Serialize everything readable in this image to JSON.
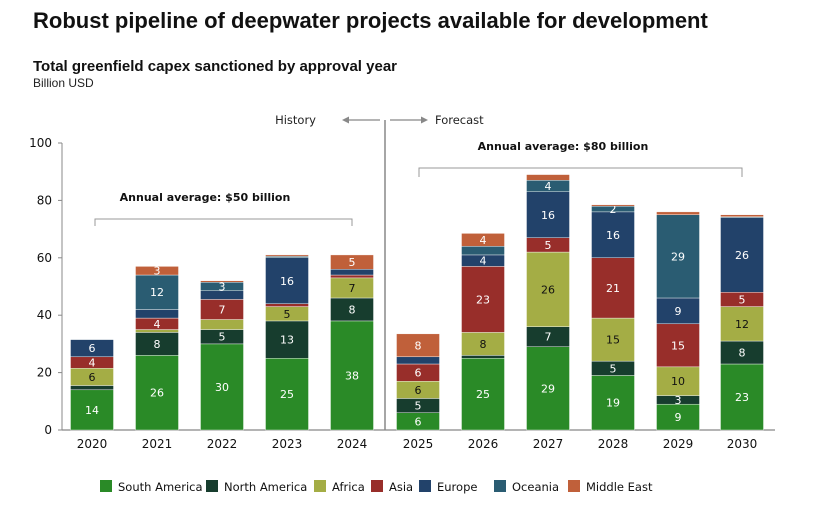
{
  "title": "Robust pipeline of deepwater projects available for development",
  "chart_data": {
    "type": "bar",
    "stacked": true,
    "title": "Total greenfield capex sanctioned by approval year",
    "ylabel": "Billion USD",
    "xlabel": "",
    "ylim": [
      0,
      100
    ],
    "yticks": [
      "0",
      "20",
      "40",
      "60",
      "80",
      "100"
    ],
    "categories": [
      "2020",
      "2021",
      "2022",
      "2023",
      "2024",
      "2025",
      "2026",
      "2027",
      "2028",
      "2029",
      "2030"
    ],
    "series": [
      {
        "name": "South America",
        "color": "#2a8a27",
        "values": [
          14,
          26,
          30,
          25,
          38,
          6,
          25,
          29,
          19,
          9,
          23
        ],
        "labels": [
          "14",
          "26",
          "30",
          "25",
          "38",
          "6",
          "25",
          "29",
          "19",
          "9",
          "23"
        ]
      },
      {
        "name": "North America",
        "color": "#173d2e",
        "values": [
          1.5,
          8,
          5,
          13,
          8,
          5,
          1,
          7,
          5,
          3,
          8
        ],
        "labels": [
          null,
          "8",
          "5",
          "13",
          "8",
          "5",
          null,
          "7",
          "5",
          "3",
          "8"
        ]
      },
      {
        "name": "Africa",
        "color": "#a4ad45",
        "values": [
          6,
          1,
          3.5,
          5,
          7,
          6,
          8,
          26,
          15,
          10,
          12
        ],
        "labels": [
          "6",
          null,
          null,
          "5",
          "7",
          "6",
          "8",
          "26",
          "15",
          "10",
          "12"
        ]
      },
      {
        "name": "Asia",
        "color": "#982e2a",
        "values": [
          4,
          4,
          7,
          1,
          1,
          6,
          23,
          5,
          21,
          15,
          5
        ],
        "labels": [
          "4",
          "4",
          "7",
          null,
          null,
          "6",
          "23",
          "5",
          "21",
          "15",
          "5"
        ]
      },
      {
        "name": "Europe",
        "color": "#22426a",
        "values": [
          6,
          3,
          3,
          16,
          2,
          2.5,
          4,
          16,
          16,
          9,
          26
        ],
        "labels": [
          "6",
          null,
          null,
          "16",
          null,
          null,
          "4",
          "16",
          "16",
          "9",
          "26"
        ]
      },
      {
        "name": "Oceania",
        "color": "#2a5c72",
        "values": [
          0,
          12,
          3,
          0.5,
          0,
          0,
          3,
          4,
          2,
          29,
          0.3
        ],
        "labels": [
          null,
          "12",
          "3",
          null,
          null,
          null,
          null,
          "4",
          "2",
          "29",
          null
        ]
      },
      {
        "name": "Middle East",
        "color": "#c0603a",
        "values": [
          0,
          3,
          0.5,
          0.5,
          5,
          8,
          4.5,
          2,
          0.5,
          1,
          0.7
        ],
        "labels": [
          null,
          "3",
          null,
          null,
          "5",
          "8",
          "4",
          null,
          null,
          null,
          null
        ]
      }
    ],
    "annotations": {
      "history": "History",
      "forecast": "Forecast",
      "history_avg": "Annual average: $50 billion",
      "forecast_avg": "Annual average: $80 billion"
    },
    "legend_position": "bottom",
    "grid": false
  }
}
